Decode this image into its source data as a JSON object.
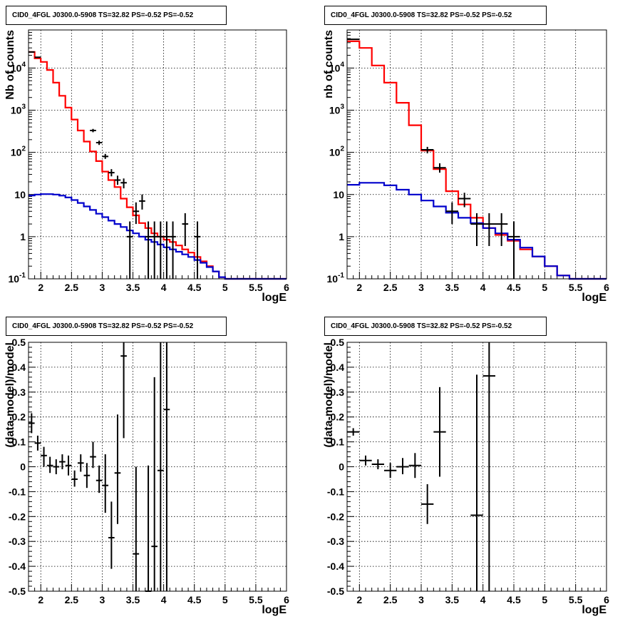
{
  "colors": {
    "total_model": "#ff0000",
    "source_model": "#0000cc",
    "data": "#000000",
    "grid": "#000000"
  },
  "chart_data": [
    {
      "type": "line",
      "panel": "top-left",
      "title": "CID0_4FGL J0300.0-5908 TS=32.82 PS=-0.52 PS=-0.52",
      "xlabel": "logE",
      "ylabel": "Nb of counts",
      "xlim": [
        1.8,
        6.0
      ],
      "ylim": [
        0.1,
        80000
      ],
      "ylog": true,
      "grid": true,
      "xticks": [
        "2",
        "2.5",
        "3",
        "3.5",
        "4",
        "4.5",
        "5",
        "5.5",
        "6"
      ],
      "yticks": [
        "10^-1",
        "1",
        "10",
        "10^2",
        "10^3",
        "10^4"
      ],
      "series": [
        {
          "kind": "step",
          "color": "total_model",
          "edges": [
            1.8,
            1.9,
            2.0,
            2.1,
            2.2,
            2.3,
            2.4,
            2.5,
            2.6,
            2.7,
            2.8,
            2.9,
            3.0,
            3.1,
            3.2,
            3.3,
            3.4,
            3.5,
            3.6,
            3.7,
            3.8,
            3.9,
            4.0,
            4.1,
            4.2,
            4.3,
            4.4,
            4.5,
            4.6,
            4.7,
            4.8,
            4.9,
            5.0,
            5.1,
            5.2,
            5.3,
            5.4,
            5.5,
            5.6,
            5.7,
            5.8,
            5.9,
            6.0
          ],
          "values": [
            24000,
            17000,
            14000,
            9000,
            4500,
            2200,
            1150,
            600,
            330,
            180,
            105,
            62,
            35,
            22,
            15,
            8,
            5,
            3.2,
            2.1,
            1.6,
            1.2,
            1.0,
            0.85,
            0.75,
            0.62,
            0.5,
            0.42,
            0.33,
            0.26,
            0.2,
            0.15,
            0.11,
            0.1,
            0.1,
            0.1,
            0.1,
            0.1,
            0.1,
            0.1,
            0.1,
            0.1,
            0.1
          ]
        },
        {
          "kind": "step",
          "color": "source_model",
          "edges": [
            1.8,
            1.9,
            2.0,
            2.1,
            2.2,
            2.3,
            2.4,
            2.5,
            2.6,
            2.7,
            2.8,
            2.9,
            3.0,
            3.1,
            3.2,
            3.3,
            3.4,
            3.5,
            3.6,
            3.7,
            3.8,
            3.9,
            4.0,
            4.1,
            4.2,
            4.3,
            4.4,
            4.5,
            4.6,
            4.7,
            4.8,
            4.9,
            5.0,
            5.1,
            5.2,
            5.3,
            5.4,
            5.5,
            5.6,
            5.7,
            5.8,
            5.9,
            6.0
          ],
          "values": [
            9.5,
            10,
            10.2,
            10.2,
            10,
            9.4,
            8.5,
            7.4,
            6.3,
            5.2,
            4.3,
            3.5,
            2.9,
            2.4,
            2.0,
            1.7,
            1.4,
            1.2,
            1.0,
            0.85,
            0.75,
            0.65,
            0.56,
            0.5,
            0.44,
            0.38,
            0.33,
            0.28,
            0.24,
            0.19,
            0.15,
            0.11,
            0.1,
            0.1,
            0.1,
            0.1,
            0.1,
            0.1,
            0.1,
            0.1,
            0.1,
            0.1
          ]
        },
        {
          "kind": "points",
          "color": "data",
          "points": [
            {
              "x": 1.85,
              "y": 24000,
              "xerr": 0.05,
              "ylo": 23800,
              "yhi": 24200
            },
            {
              "x": 1.95,
              "y": 18000,
              "xerr": 0.05,
              "ylo": 17800,
              "yhi": 18200
            },
            {
              "x": 2.85,
              "y": 330,
              "xerr": 0.05,
              "ylo": 300,
              "yhi": 360
            },
            {
              "x": 2.95,
              "y": 170,
              "xerr": 0.05,
              "ylo": 150,
              "yhi": 190
            },
            {
              "x": 3.05,
              "y": 80,
              "xerr": 0.05,
              "ylo": 70,
              "yhi": 92
            },
            {
              "x": 3.15,
              "y": 33,
              "xerr": 0.05,
              "ylo": 27,
              "yhi": 40
            },
            {
              "x": 3.25,
              "y": 22,
              "xerr": 0.05,
              "ylo": 17,
              "yhi": 28
            },
            {
              "x": 3.35,
              "y": 19,
              "xerr": 0.05,
              "ylo": 14,
              "yhi": 24
            },
            {
              "x": 3.45,
              "y": 1,
              "xerr": 0.05,
              "ylo": 0.1,
              "yhi": 2.3
            },
            {
              "x": 3.55,
              "y": 4,
              "xerr": 0.05,
              "ylo": 2,
              "yhi": 6.5
            },
            {
              "x": 3.65,
              "y": 7,
              "xerr": 0.05,
              "ylo": 4.4,
              "yhi": 10
            },
            {
              "x": 3.75,
              "y": 1,
              "xerr": 0.05,
              "ylo": 0.1,
              "yhi": 2.3
            },
            {
              "x": 3.85,
              "y": 1,
              "xerr": 0.05,
              "ylo": 0.1,
              "yhi": 2.3
            },
            {
              "x": 3.95,
              "y": 1,
              "xerr": 0.05,
              "ylo": 0.1,
              "yhi": 2.3
            },
            {
              "x": 4.05,
              "y": 1,
              "xerr": 0.05,
              "ylo": 0.1,
              "yhi": 2.3
            },
            {
              "x": 4.15,
              "y": 1,
              "xerr": 0.05,
              "ylo": 0.1,
              "yhi": 2.3
            },
            {
              "x": 4.35,
              "y": 2,
              "xerr": 0.05,
              "ylo": 0.6,
              "yhi": 3.6
            },
            {
              "x": 4.55,
              "y": 1,
              "xerr": 0.05,
              "ylo": 0.1,
              "yhi": 2.3
            }
          ]
        }
      ]
    },
    {
      "type": "line",
      "panel": "top-right",
      "title": "CID0_4FGL J0300.0-5908 TS=32.82 PS=-0.52 PS=-0.52",
      "xlabel": "logE",
      "ylabel": "nb of counts",
      "xlim": [
        1.8,
        6.0
      ],
      "ylim": [
        0.1,
        80000
      ],
      "ylog": true,
      "grid": true,
      "xticks": [
        "2",
        "2.5",
        "3",
        "3.5",
        "4",
        "4.5",
        "5",
        "5.5",
        "6"
      ],
      "yticks": [
        "10^-1",
        "1",
        "10",
        "10^2",
        "10^3",
        "10^4"
      ],
      "series": [
        {
          "kind": "step",
          "color": "total_model",
          "edges": [
            1.8,
            2.0,
            2.2,
            2.4,
            2.6,
            2.8,
            3.0,
            3.2,
            3.4,
            3.6,
            3.8,
            4.0,
            4.2,
            4.4,
            4.6,
            4.8,
            5.0,
            5.2,
            5.4,
            5.6,
            5.8,
            6.0
          ],
          "values": [
            43000,
            30000,
            11500,
            4500,
            1500,
            440,
            110,
            40,
            12,
            5.8,
            2.8,
            1.6,
            1.1,
            0.8,
            0.5,
            0.34,
            0.2,
            0.12,
            0.1,
            0.1,
            0.1
          ]
        },
        {
          "kind": "step",
          "color": "source_model",
          "edges": [
            1.8,
            2.0,
            2.2,
            2.4,
            2.6,
            2.8,
            3.0,
            3.2,
            3.4,
            3.6,
            3.8,
            4.0,
            4.2,
            4.4,
            4.6,
            4.8,
            5.0,
            5.2,
            5.4,
            5.6,
            5.8,
            6.0
          ],
          "values": [
            17,
            19,
            19,
            16.5,
            13,
            10,
            7.2,
            5.2,
            3.7,
            2.8,
            2.1,
            1.6,
            1.2,
            0.85,
            0.55,
            0.34,
            0.2,
            0.12,
            0.1,
            0.1,
            0.1
          ]
        },
        {
          "kind": "points",
          "color": "data",
          "points": [
            {
              "x": 1.9,
              "y": 48000,
              "xerr": 0.1,
              "ylo": 47500,
              "yhi": 48500
            },
            {
              "x": 3.1,
              "y": 115,
              "xerr": 0.1,
              "ylo": 95,
              "yhi": 135
            },
            {
              "x": 3.3,
              "y": 43,
              "xerr": 0.1,
              "ylo": 33,
              "yhi": 55
            },
            {
              "x": 3.5,
              "y": 4,
              "xerr": 0.1,
              "ylo": 2,
              "yhi": 6.5
            },
            {
              "x": 3.7,
              "y": 8,
              "xerr": 0.1,
              "ylo": 5,
              "yhi": 11
            },
            {
              "x": 3.9,
              "y": 2,
              "xerr": 0.1,
              "ylo": 0.6,
              "yhi": 3.6
            },
            {
              "x": 4.1,
              "y": 2,
              "xerr": 0.1,
              "ylo": 0.6,
              "yhi": 3.6
            },
            {
              "x": 4.3,
              "y": 2,
              "xerr": 0.1,
              "ylo": 0.6,
              "yhi": 3.6
            },
            {
              "x": 4.5,
              "y": 1,
              "xerr": 0.1,
              "ylo": 0.1,
              "yhi": 2.3
            }
          ]
        }
      ]
    },
    {
      "type": "scatter",
      "panel": "bottom-left",
      "title": "CID0_4FGL J0300.0-5908 TS=32.82 PS=-0.52 PS=-0.52",
      "xlabel": "logE",
      "ylabel": "(data-model)/model",
      "xlim": [
        1.8,
        6.0
      ],
      "ylim": [
        -0.5,
        0.5
      ],
      "ylog": false,
      "grid": true,
      "xticks": [
        "2",
        "2.5",
        "3",
        "3.5",
        "4",
        "4.5",
        "5",
        "5.5",
        "6"
      ],
      "yticks": [
        "-0.5",
        "-0.4",
        "-0.3",
        "-0.2",
        "-0.1",
        "0",
        "0.1",
        "0.2",
        "0.3",
        "0.4",
        "0.5"
      ],
      "series": [
        {
          "kind": "points",
          "color": "data",
          "points": [
            {
              "x": 1.85,
              "y": 0.175,
              "xerr": 0.05,
              "ylo": 0.135,
              "yhi": 0.215
            },
            {
              "x": 1.95,
              "y": 0.095,
              "xerr": 0.05,
              "ylo": 0.065,
              "yhi": 0.125
            },
            {
              "x": 2.05,
              "y": 0.045,
              "xerr": 0.05,
              "ylo": 0.0,
              "yhi": 0.08
            },
            {
              "x": 2.15,
              "y": 0.005,
              "xerr": 0.05,
              "ylo": -0.025,
              "yhi": 0.04
            },
            {
              "x": 2.25,
              "y": 0.0,
              "xerr": 0.05,
              "ylo": -0.03,
              "yhi": 0.03
            },
            {
              "x": 2.35,
              "y": 0.02,
              "xerr": 0.05,
              "ylo": -0.01,
              "yhi": 0.05
            },
            {
              "x": 2.45,
              "y": 0.005,
              "xerr": 0.05,
              "ylo": -0.035,
              "yhi": 0.045
            },
            {
              "x": 2.55,
              "y": -0.05,
              "xerr": 0.05,
              "ylo": -0.08,
              "yhi": -0.015
            },
            {
              "x": 2.65,
              "y": 0.015,
              "xerr": 0.05,
              "ylo": -0.02,
              "yhi": 0.05
            },
            {
              "x": 2.75,
              "y": -0.035,
              "xerr": 0.05,
              "ylo": -0.085,
              "yhi": 0.015
            },
            {
              "x": 2.85,
              "y": 0.04,
              "xerr": 0.05,
              "ylo": -0.005,
              "yhi": 0.1
            },
            {
              "x": 2.95,
              "y": -0.055,
              "xerr": 0.05,
              "ylo": -0.105,
              "yhi": 0.005
            },
            {
              "x": 3.05,
              "y": -0.075,
              "xerr": 0.05,
              "ylo": -0.185,
              "yhi": 0.05
            },
            {
              "x": 3.15,
              "y": -0.285,
              "xerr": 0.05,
              "ylo": -0.41,
              "yhi": -0.14
            },
            {
              "x": 3.25,
              "y": -0.025,
              "xerr": 0.05,
              "ylo": -0.23,
              "yhi": 0.21
            },
            {
              "x": 3.35,
              "y": 0.445,
              "xerr": 0.05,
              "ylo": 0.115,
              "yhi": 0.5
            },
            {
              "x": 3.55,
              "y": -0.35,
              "xerr": 0.05,
              "ylo": -0.5,
              "yhi": -0.0
            },
            {
              "x": 3.75,
              "y": -0.5,
              "xerr": 0.05,
              "ylo": -0.5,
              "yhi": 0.005
            },
            {
              "x": 3.85,
              "y": -0.32,
              "xerr": 0.05,
              "ylo": -0.5,
              "yhi": 0.36
            },
            {
              "x": 3.95,
              "y": -0.015,
              "xerr": 0.05,
              "ylo": -0.5,
              "yhi": 0.5
            },
            {
              "x": 4.05,
              "y": 0.23,
              "xerr": 0.05,
              "ylo": -0.5,
              "yhi": 0.5
            }
          ]
        }
      ]
    },
    {
      "type": "scatter",
      "panel": "bottom-right",
      "title": "CID0_4FGL J0300.0-5908 TS=32.82 PS=-0.52 PS=-0.52",
      "xlabel": "logE",
      "ylabel": "(data-model)/model",
      "xlim": [
        1.8,
        6.0
      ],
      "ylim": [
        -0.5,
        0.5
      ],
      "ylog": false,
      "grid": true,
      "xticks": [
        "2",
        "2.5",
        "3",
        "3.5",
        "4",
        "4.5",
        "5",
        "5.5",
        "6"
      ],
      "yticks": [
        "-0.5",
        "-0.4",
        "-0.3",
        "-0.2",
        "-0.1",
        "0",
        "0.1",
        "0.2",
        "0.3",
        "0.4",
        "0.5"
      ],
      "series": [
        {
          "kind": "points",
          "color": "data",
          "points": [
            {
              "x": 1.9,
              "y": 0.14,
              "xerr": 0.1,
              "ylo": 0.125,
              "yhi": 0.155
            },
            {
              "x": 2.1,
              "y": 0.025,
              "xerr": 0.1,
              "ylo": 0.005,
              "yhi": 0.045
            },
            {
              "x": 2.3,
              "y": 0.01,
              "xerr": 0.1,
              "ylo": -0.01,
              "yhi": 0.03
            },
            {
              "x": 2.5,
              "y": -0.015,
              "xerr": 0.1,
              "ylo": -0.045,
              "yhi": 0.015
            },
            {
              "x": 2.7,
              "y": 0.0,
              "xerr": 0.1,
              "ylo": -0.03,
              "yhi": 0.035
            },
            {
              "x": 2.9,
              "y": 0.005,
              "xerr": 0.1,
              "ylo": -0.045,
              "yhi": 0.055
            },
            {
              "x": 3.1,
              "y": -0.15,
              "xerr": 0.1,
              "ylo": -0.23,
              "yhi": -0.07
            },
            {
              "x": 3.3,
              "y": 0.14,
              "xerr": 0.1,
              "ylo": -0.04,
              "yhi": 0.32
            },
            {
              "x": 3.9,
              "y": -0.195,
              "xerr": 0.1,
              "ylo": -0.5,
              "yhi": 0.37
            },
            {
              "x": 4.1,
              "y": 0.365,
              "xerr": 0.1,
              "ylo": -0.5,
              "yhi": 0.5
            }
          ]
        }
      ]
    }
  ]
}
